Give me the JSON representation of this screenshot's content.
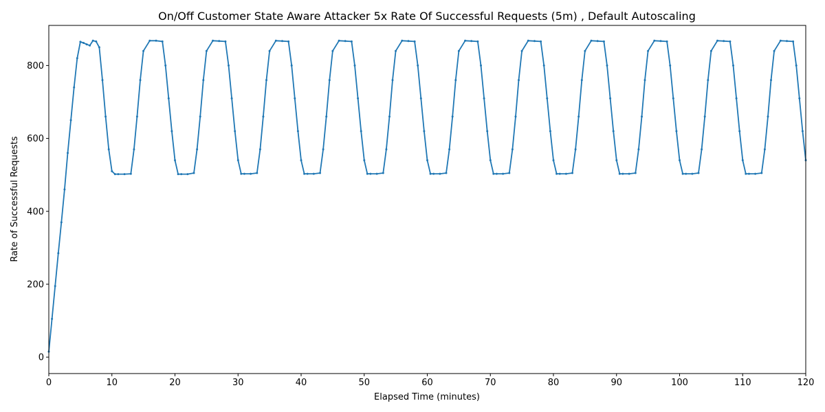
{
  "chart_data": {
    "type": "line",
    "title": "On/Off Customer State Aware Attacker 5x Rate Of Successful Requests (5m) , Default Autoscaling",
    "xlabel": "Elapsed Time (minutes)",
    "ylabel": "Rate of Successful Requests",
    "xlim": [
      0,
      120
    ],
    "ylim": [
      -45,
      910
    ],
    "xticks": [
      0,
      10,
      20,
      30,
      40,
      50,
      60,
      70,
      80,
      90,
      100,
      110,
      120
    ],
    "yticks": [
      0,
      200,
      400,
      600,
      800
    ],
    "grid": false,
    "legend": "none",
    "series": [
      {
        "color": "#1f77b4",
        "marker": "point",
        "x": [
          0.0,
          0.5,
          1.0,
          1.5,
          2.0,
          2.5,
          3.0,
          3.5,
          4.0,
          4.5,
          5.0,
          5.5,
          6.0,
          6.5,
          7.0,
          7.5,
          8.0,
          8.5,
          9.0,
          9.5,
          10.0,
          10.5,
          11.0,
          12.0,
          13.0,
          13.5,
          14.0,
          14.5,
          15.0,
          16.0,
          17.0,
          18.0,
          18.5,
          19.0,
          19.5,
          20.0,
          20.5,
          21.0,
          22.0,
          23.0,
          23.5,
          24.0,
          24.5,
          25.0,
          26.0,
          27.0,
          28.0,
          28.5,
          29.0,
          29.5,
          30.0,
          30.5,
          31.0,
          32.0,
          33.0,
          33.5,
          34.0,
          34.5,
          35.0,
          36.0,
          37.0,
          38.0,
          38.5,
          39.0,
          39.5,
          40.0,
          40.5,
          41.0,
          42.0,
          43.0,
          43.5,
          44.0,
          44.5,
          45.0,
          46.0,
          47.0,
          48.0,
          48.5,
          49.0,
          49.5,
          50.0,
          50.5,
          51.0,
          52.0,
          53.0,
          53.5,
          54.0,
          54.5,
          55.0,
          56.0,
          57.0,
          58.0,
          58.5,
          59.0,
          59.5,
          60.0,
          60.5,
          61.0,
          62.0,
          63.0,
          63.5,
          64.0,
          64.5,
          65.0,
          66.0,
          67.0,
          68.0,
          68.5,
          69.0,
          69.5,
          70.0,
          70.5,
          71.0,
          72.0,
          73.0,
          73.5,
          74.0,
          74.5,
          75.0,
          76.0,
          77.0,
          78.0,
          78.5,
          79.0,
          79.5,
          80.0,
          80.5,
          81.0,
          82.0,
          83.0,
          83.5,
          84.0,
          84.5,
          85.0,
          86.0,
          87.0,
          88.0,
          88.5,
          89.0,
          89.5,
          90.0,
          90.5,
          91.0,
          92.0,
          93.0,
          93.5,
          94.0,
          94.5,
          95.0,
          96.0,
          97.0,
          98.0,
          98.5,
          99.0,
          99.5,
          100.0,
          100.5,
          101.0,
          102.0,
          103.0,
          103.5,
          104.0,
          104.5,
          105.0,
          106.0,
          107.0,
          108.0,
          108.5,
          109.0,
          109.5,
          110.0,
          110.5,
          111.0,
          112.0,
          113.0,
          113.5,
          114.0,
          114.5,
          115.0,
          116.0,
          117.0,
          118.0,
          118.5,
          119.0,
          119.5,
          120.0
        ],
        "y": [
          15,
          105,
          195,
          285,
          370,
          460,
          560,
          650,
          740,
          820,
          865,
          862,
          858,
          855,
          868,
          866,
          850,
          760,
          660,
          570,
          510,
          502,
          502,
          502,
          503,
          570,
          660,
          760,
          840,
          868,
          868,
          866,
          800,
          710,
          620,
          540,
          502,
          502,
          502,
          505,
          570,
          660,
          760,
          840,
          868,
          867,
          866,
          800,
          710,
          620,
          540,
          503,
          503,
          503,
          505,
          570,
          660,
          760,
          840,
          868,
          867,
          866,
          800,
          710,
          620,
          540,
          503,
          503,
          503,
          505,
          570,
          660,
          760,
          840,
          868,
          867,
          866,
          800,
          710,
          620,
          540,
          503,
          503,
          503,
          505,
          570,
          660,
          760,
          840,
          868,
          867,
          866,
          800,
          710,
          620,
          540,
          503,
          503,
          503,
          505,
          570,
          660,
          760,
          840,
          868,
          867,
          866,
          800,
          710,
          620,
          540,
          503,
          503,
          503,
          505,
          570,
          660,
          760,
          840,
          868,
          867,
          866,
          800,
          710,
          620,
          540,
          503,
          503,
          503,
          505,
          570,
          660,
          760,
          840,
          868,
          867,
          866,
          800,
          710,
          620,
          540,
          503,
          503,
          503,
          505,
          570,
          660,
          760,
          840,
          868,
          867,
          866,
          800,
          710,
          620,
          540,
          503,
          503,
          503,
          505,
          570,
          660,
          760,
          840,
          868,
          867,
          866,
          800,
          710,
          620,
          540,
          503,
          503,
          503,
          505,
          570,
          660,
          760,
          840,
          868,
          867,
          866,
          800,
          710,
          620,
          540
        ]
      }
    ]
  }
}
